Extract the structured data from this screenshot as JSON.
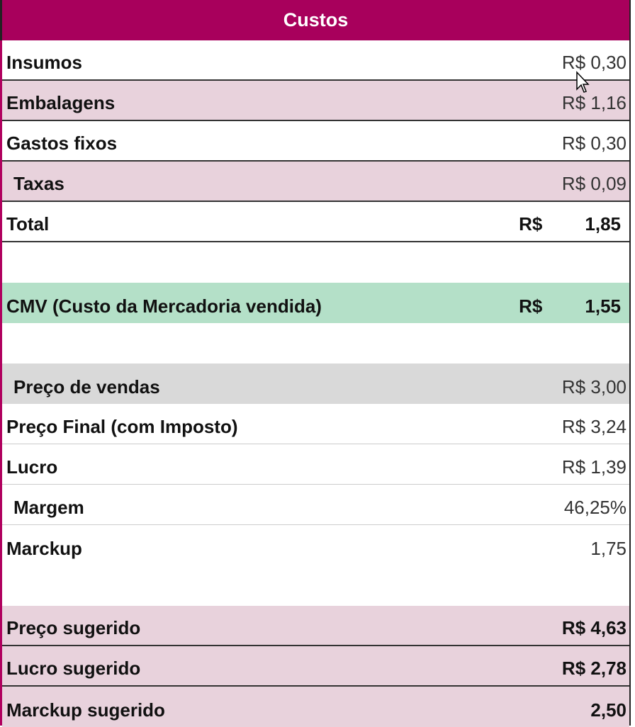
{
  "header": {
    "title": "Custos"
  },
  "costs": [
    {
      "label": "Insumos",
      "value": "R$ 0,30"
    },
    {
      "label": "Embalagens",
      "value": "R$ 1,16"
    },
    {
      "label": "Gastos fixos",
      "value": "R$ 0,30"
    },
    {
      "label": "Taxas",
      "value": "R$ 0,09"
    }
  ],
  "total": {
    "label": "Total",
    "currency": "R$",
    "value": "1,85"
  },
  "cmv": {
    "label": "CMV (Custo da  Mercadoria vendida)",
    "currency": "R$",
    "value": "1,55"
  },
  "pricing": [
    {
      "label": "Preço de vendas",
      "value": "R$ 3,00"
    },
    {
      "label": "Preço Final (com Imposto)",
      "value": "R$ 3,24"
    },
    {
      "label": "Lucro",
      "value": "R$ 1,39"
    },
    {
      "label": "Margem",
      "value": "46,25%"
    },
    {
      "label": "Marckup",
      "value": "1,75"
    }
  ],
  "suggested": [
    {
      "label": "Preço sugerido",
      "value": "R$ 4,63"
    },
    {
      "label": "Lucro sugerido",
      "value": "R$ 2,78"
    },
    {
      "label": "Marckup sugerido",
      "value": "2,50"
    }
  ],
  "colors": {
    "header": "#a8005c",
    "pink_row": "#e8d2dc",
    "cmv_row": "#b4e0c8",
    "gray_row": "#d9d9d9"
  }
}
